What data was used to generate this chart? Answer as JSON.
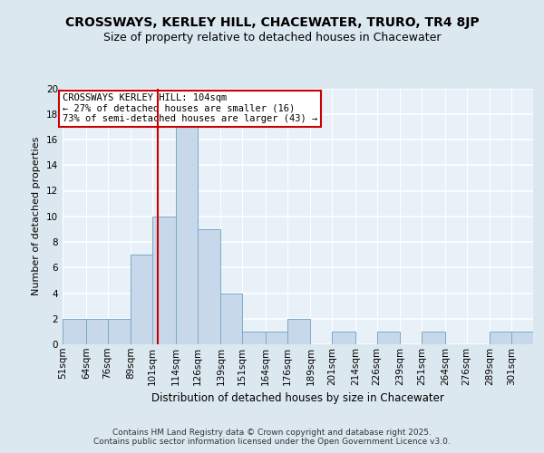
{
  "title1": "CROSSWAYS, KERLEY HILL, CHACEWATER, TRURO, TR4 8JP",
  "title2": "Size of property relative to detached houses in Chacewater",
  "xlabel": "Distribution of detached houses by size in Chacewater",
  "ylabel": "Number of detached properties",
  "bin_labels": [
    "51sqm",
    "64sqm",
    "76sqm",
    "89sqm",
    "101sqm",
    "114sqm",
    "126sqm",
    "139sqm",
    "151sqm",
    "164sqm",
    "176sqm",
    "189sqm",
    "201sqm",
    "214sqm",
    "226sqm",
    "239sqm",
    "251sqm",
    "264sqm",
    "276sqm",
    "289sqm",
    "301sqm"
  ],
  "bin_edges": [
    51,
    64,
    76,
    89,
    101,
    114,
    126,
    139,
    151,
    164,
    176,
    189,
    201,
    214,
    226,
    239,
    251,
    264,
    276,
    289,
    301
  ],
  "bar_heights": [
    2,
    2,
    2,
    7,
    10,
    17,
    9,
    4,
    1,
    1,
    2,
    0,
    1,
    0,
    1,
    0,
    1,
    0,
    0,
    1,
    1
  ],
  "bar_color": "#c8d8eb",
  "bar_edge_color": "#7aaac8",
  "bar_edge_width": 0.7,
  "red_line_x": 104,
  "red_line_color": "#cc0000",
  "annotation_box_text": "CROSSWAYS KERLEY HILL: 104sqm\n← 27% of detached houses are smaller (16)\n73% of semi-detached houses are larger (43) →",
  "annotation_fontsize": 7.5,
  "annotation_box_color": "#ffffff",
  "annotation_box_edgecolor": "#cc0000",
  "footer_text": "Contains HM Land Registry data © Crown copyright and database right 2025.\nContains public sector information licensed under the Open Government Licence v3.0.",
  "bg_color": "#dce8f0",
  "plot_bg_color": "#e8f0f8",
  "grid_color": "#ffffff",
  "ylim": [
    0,
    20
  ],
  "yticks": [
    0,
    2,
    4,
    6,
    8,
    10,
    12,
    14,
    16,
    18,
    20
  ],
  "title_fontsize": 10,
  "subtitle_fontsize": 9,
  "xlabel_fontsize": 8.5,
  "ylabel_fontsize": 8,
  "tick_fontsize": 7.5
}
